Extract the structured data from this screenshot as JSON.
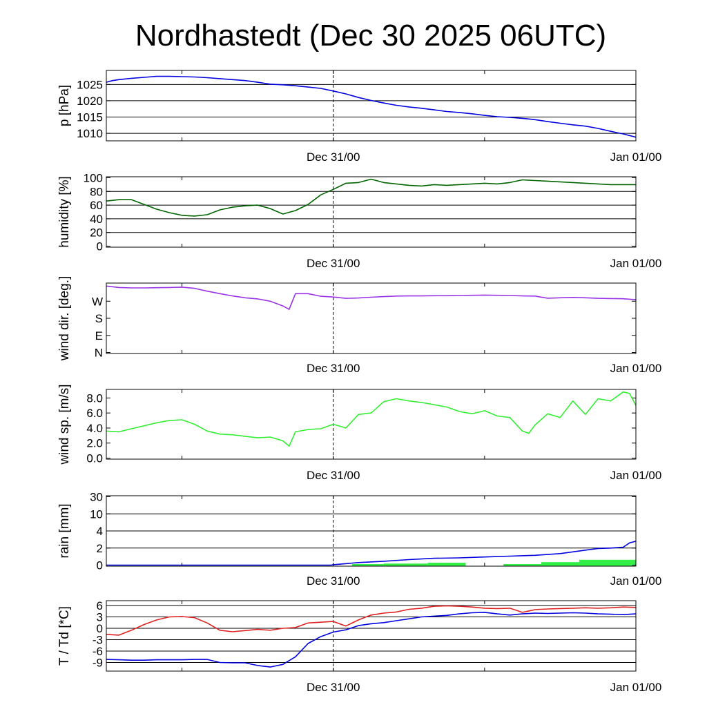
{
  "chart_data": {
    "type": "line",
    "title": "Nordhastedt (Dec 30 2025 06UTC)",
    "x_range_hours": [
      0,
      42
    ],
    "x_ticks": [
      {
        "hour": 18,
        "label": "Dec 31/00"
      },
      {
        "hour": 42,
        "label": "Jan 01/00"
      }
    ],
    "x_minor_ticks_hours": [
      6,
      18,
      30,
      42
    ],
    "divider_hour": 18,
    "panels": [
      {
        "id": "pressure",
        "ylabel": "p [hPa]",
        "ylim": [
          1008,
          1029
        ],
        "grid_values": [
          1010,
          1015,
          1020,
          1025
        ],
        "tick_labels": [
          {
            "value": 1025,
            "label": "1025"
          },
          {
            "value": 1020,
            "label": "1020"
          },
          {
            "value": 1015,
            "label": "1015"
          },
          {
            "value": 1010,
            "label": "1010"
          }
        ],
        "series": [
          {
            "name": "pressure",
            "color": "#0000e0",
            "x": [
              0,
              0.5,
              1,
              2,
              3,
              4,
              5,
              6,
              7,
              8,
              9,
              10,
              11,
              12,
              13,
              14,
              15,
              16,
              17,
              18,
              19,
              20,
              21,
              22,
              23,
              24,
              25,
              26,
              27,
              28,
              29,
              30,
              31,
              32,
              33,
              34,
              35,
              36,
              37,
              38,
              39,
              40,
              41,
              42
            ],
            "values": [
              1025.7,
              1026.2,
              1026.5,
              1026.9,
              1027.2,
              1027.5,
              1027.5,
              1027.4,
              1027.3,
              1027.1,
              1026.8,
              1026.5,
              1026.2,
              1025.7,
              1025.1,
              1024.9,
              1024.6,
              1024.2,
              1023.8,
              1023.0,
              1022.1,
              1021.0,
              1020.1,
              1019.3,
              1018.6,
              1018.1,
              1017.7,
              1017.2,
              1016.7,
              1016.4,
              1016.0,
              1015.5,
              1015.1,
              1014.9,
              1014.6,
              1014.2,
              1013.6,
              1013.1,
              1012.6,
              1012.2,
              1011.5,
              1010.6,
              1009.8,
              1008.8
            ]
          }
        ]
      },
      {
        "id": "humidity",
        "ylabel": "humidity [%]",
        "ylim": [
          0,
          100
        ],
        "grid_values": [
          20,
          40,
          60,
          80
        ],
        "tick_labels": [
          {
            "value": 100,
            "label": "100"
          },
          {
            "value": 80,
            "label": "80"
          },
          {
            "value": 60,
            "label": "60"
          },
          {
            "value": 40,
            "label": "40"
          },
          {
            "value": 20,
            "label": "20"
          },
          {
            "value": 0,
            "label": "0"
          }
        ],
        "series": [
          {
            "name": "humidity",
            "color": "#006400",
            "x": [
              0,
              1,
              2,
              3,
              4,
              5,
              6,
              7,
              8,
              9,
              10,
              11,
              12,
              13,
              14,
              15,
              16,
              17,
              18,
              19,
              20,
              21,
              22,
              23,
              24,
              25,
              26,
              27,
              28,
              29,
              30,
              31,
              32,
              33,
              34,
              35,
              36,
              37,
              38,
              39,
              40,
              41,
              42
            ],
            "values": [
              66,
              68,
              68,
              61,
              54,
              49,
              45,
              44,
              46,
              53,
              57,
              59,
              60,
              55,
              47,
              52,
              61,
              75,
              83,
              92,
              93,
              98,
              93,
              91,
              89,
              88,
              90,
              89,
              90,
              91,
              92,
              91,
              93,
              97,
              96,
              95,
              94,
              93,
              92,
              91,
              90,
              90,
              90
            ]
          }
        ]
      },
      {
        "id": "wind_direction",
        "ylabel": "wind dir. [deg.]",
        "ylim": [
          0,
          360
        ],
        "grid_values": [],
        "tick_labels": [
          {
            "value": 270,
            "label": "W"
          },
          {
            "value": 180,
            "label": "S"
          },
          {
            "value": 90,
            "label": "E"
          },
          {
            "value": 0,
            "label": "N"
          }
        ],
        "series": [
          {
            "name": "wind direction",
            "color": "#9933e6",
            "x": [
              0,
              1,
              2,
              3,
              4,
              5,
              6,
              7,
              8,
              9,
              10,
              11,
              12,
              13,
              14,
              14.5,
              15,
              16,
              17,
              18,
              19,
              20,
              21,
              22,
              23,
              24,
              25,
              26,
              27,
              28,
              29,
              30,
              31,
              32,
              33,
              34,
              35,
              36,
              37,
              38,
              39,
              40,
              41,
              42
            ],
            "values": [
              350,
              342,
              340,
              340,
              341,
              342,
              344,
              338,
              323,
              310,
              298,
              288,
              282,
              270,
              245,
              227,
              310,
              310,
              296,
              292,
              285,
              287,
              291,
              294,
              297,
              298,
              298,
              299,
              299,
              300,
              301,
              302,
              301,
              300,
              298,
              297,
              286,
              288,
              290,
              288,
              285,
              284,
              283,
              278
            ]
          }
        ]
      },
      {
        "id": "wind_speed",
        "ylabel": "wind sp. [m/s]",
        "ylim": [
          0,
          9
        ],
        "grid_values": [],
        "tick_labels": [
          {
            "value": 8,
            "label": "8.0"
          },
          {
            "value": 6,
            "label": "6.0"
          },
          {
            "value": 4,
            "label": "4.0"
          },
          {
            "value": 2,
            "label": "2.0"
          },
          {
            "value": 0,
            "label": "0.0"
          }
        ],
        "series": [
          {
            "name": "wind speed",
            "color": "#33ee33",
            "x": [
              0,
              1,
              2,
              3,
              4,
              5,
              6,
              7,
              8,
              9,
              10,
              11,
              12,
              13,
              14,
              14.5,
              15,
              16,
              17,
              18,
              19,
              20,
              21,
              22,
              23,
              24,
              25,
              26,
              27,
              28,
              29,
              30,
              31,
              32,
              33,
              33.5,
              34,
              35,
              36,
              37,
              38,
              39,
              40,
              41,
              41.5,
              42
            ],
            "values": [
              3.6,
              3.5,
              3.9,
              4.3,
              4.7,
              5.0,
              5.1,
              4.5,
              3.6,
              3.2,
              3.1,
              2.9,
              2.7,
              2.8,
              2.3,
              1.6,
              3.5,
              3.8,
              3.9,
              4.5,
              4.0,
              5.8,
              6.0,
              7.5,
              7.9,
              7.6,
              7.4,
              7.1,
              6.8,
              6.2,
              5.9,
              6.3,
              5.6,
              5.4,
              3.6,
              3.3,
              4.4,
              5.9,
              5.4,
              7.6,
              5.8,
              7.9,
              7.6,
              8.8,
              8.6,
              7.0
            ]
          }
        ]
      },
      {
        "id": "rain",
        "ylabel": "rain [mm]",
        "ylim": [
          0,
          30
        ],
        "scale": "nonlinear",
        "scale_breaks": [
          0,
          2,
          4,
          10,
          30
        ],
        "grid_values": [
          2,
          4,
          10
        ],
        "tick_labels": [
          {
            "value": 30,
            "label": "30"
          },
          {
            "value": 10,
            "label": "10"
          },
          {
            "value": 4,
            "label": "4"
          },
          {
            "value": 2,
            "label": "2"
          },
          {
            "value": 0,
            "label": "0"
          }
        ],
        "bars": {
          "name": "hourly precipitation",
          "color": "#33ee44",
          "items": [
            {
              "x0": 19.5,
              "x1": 22.0,
              "value": 0.12
            },
            {
              "x0": 22.0,
              "x1": 25.5,
              "value": 0.18
            },
            {
              "x0": 25.5,
              "x1": 28.5,
              "value": 0.28
            },
            {
              "x0": 31.5,
              "x1": 34.5,
              "value": 0.12
            },
            {
              "x0": 34.5,
              "x1": 37.5,
              "value": 0.35
            },
            {
              "x0": 37.5,
              "x1": 42.0,
              "value": 0.62
            }
          ]
        },
        "series": [
          {
            "name": "accumulated precipitation",
            "color": "#0000e0",
            "x": [
              0,
              17.8,
              18,
              20,
              22,
              24,
              26,
              28,
              30,
              32,
              34,
              36,
              37,
              38,
              39,
              40,
              41,
              41.5,
              42
            ],
            "values": [
              0,
              0,
              0.05,
              0.3,
              0.45,
              0.65,
              0.8,
              0.85,
              0.95,
              1.05,
              1.15,
              1.35,
              1.55,
              1.75,
              1.95,
              2.0,
              2.1,
              2.6,
              2.8
            ]
          }
        ]
      },
      {
        "id": "temperature",
        "ylabel": "T / Td [*C]",
        "ylim": [
          -11,
          7
        ],
        "grid_values": [
          6,
          3,
          0,
          -3,
          -6,
          -9
        ],
        "tick_labels": [
          {
            "value": 6,
            "label": "6"
          },
          {
            "value": 3,
            "label": "3"
          },
          {
            "value": 0,
            "label": "0"
          },
          {
            "value": -3,
            "label": "-3"
          },
          {
            "value": -6,
            "label": "-6"
          },
          {
            "value": -9,
            "label": "-9"
          }
        ],
        "series": [
          {
            "name": "T",
            "color": "#e02020",
            "x": [
              0,
              1,
              2,
              3,
              4,
              5,
              6,
              7,
              8,
              9,
              10,
              11,
              12,
              13,
              14,
              15,
              16,
              17,
              18,
              19,
              20,
              21,
              22,
              23,
              24,
              25,
              26,
              27,
              28,
              29,
              30,
              31,
              32,
              33,
              34,
              35,
              36,
              37,
              38,
              39,
              40,
              41,
              42
            ],
            "values": [
              -1.6,
              -1.8,
              -0.5,
              1.0,
              2.2,
              3.0,
              3.1,
              2.8,
              1.4,
              -0.5,
              -0.9,
              -0.6,
              -0.3,
              -0.5,
              0.0,
              0.2,
              1.4,
              1.6,
              1.8,
              0.6,
              2.2,
              3.5,
              4.0,
              4.3,
              5.0,
              5.3,
              5.8,
              5.9,
              5.8,
              5.6,
              5.3,
              5.2,
              5.3,
              4.2,
              4.9,
              5.1,
              5.2,
              5.3,
              5.4,
              5.3,
              5.4,
              5.6,
              5.5
            ]
          },
          {
            "name": "Td",
            "color": "#0000e0",
            "x": [
              0,
              1,
              2,
              3,
              4,
              5,
              6,
              7,
              8,
              9,
              10,
              11,
              12,
              13,
              14,
              15,
              16,
              17,
              18,
              19,
              20,
              21,
              22,
              23,
              24,
              25,
              26,
              27,
              28,
              29,
              30,
              31,
              32,
              33,
              34,
              35,
              36,
              37,
              38,
              39,
              40,
              41,
              42
            ],
            "values": [
              -8.2,
              -8.3,
              -8.4,
              -8.4,
              -8.3,
              -8.3,
              -8.3,
              -8.2,
              -8.2,
              -9.0,
              -9.1,
              -9.1,
              -9.8,
              -10.2,
              -9.5,
              -7.5,
              -4.0,
              -2.2,
              -1.0,
              -0.4,
              0.7,
              1.2,
              1.5,
              2.0,
              2.5,
              3.0,
              3.2,
              3.4,
              3.8,
              4.1,
              4.2,
              3.8,
              3.5,
              3.8,
              4.0,
              3.9,
              4.0,
              4.1,
              4.0,
              3.8,
              3.7,
              3.6,
              3.8
            ]
          }
        ]
      }
    ]
  }
}
